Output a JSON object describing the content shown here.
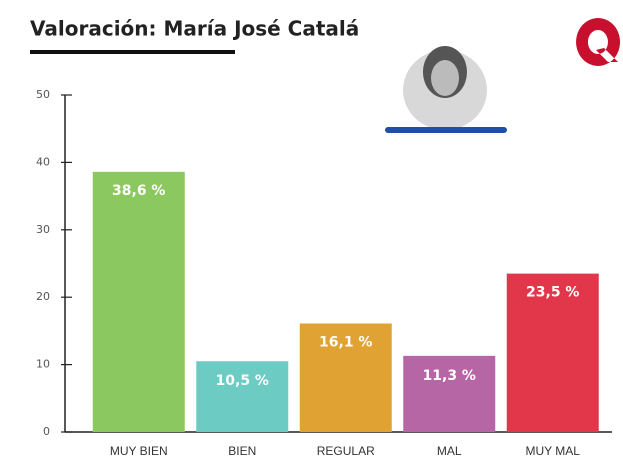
{
  "chart_data": {
    "type": "bar",
    "title": "Valoración: María José Catalá",
    "categories": [
      "MUY BIEN",
      "BIEN",
      "REGULAR",
      "MAL",
      "MUY MAL"
    ],
    "values": [
      38.6,
      10.5,
      16.1,
      11.3,
      23.5
    ],
    "value_labels": [
      "38,6 %",
      "10,5 %",
      "16,1 %",
      "11,3 %",
      "23,5 %"
    ],
    "colors": [
      "#8cc860",
      "#6ccbc2",
      "#e0a232",
      "#b666a4",
      "#e2374b"
    ],
    "ylim": [
      0,
      50
    ],
    "yticks": [
      0,
      10,
      20,
      30,
      40,
      50
    ]
  }
}
